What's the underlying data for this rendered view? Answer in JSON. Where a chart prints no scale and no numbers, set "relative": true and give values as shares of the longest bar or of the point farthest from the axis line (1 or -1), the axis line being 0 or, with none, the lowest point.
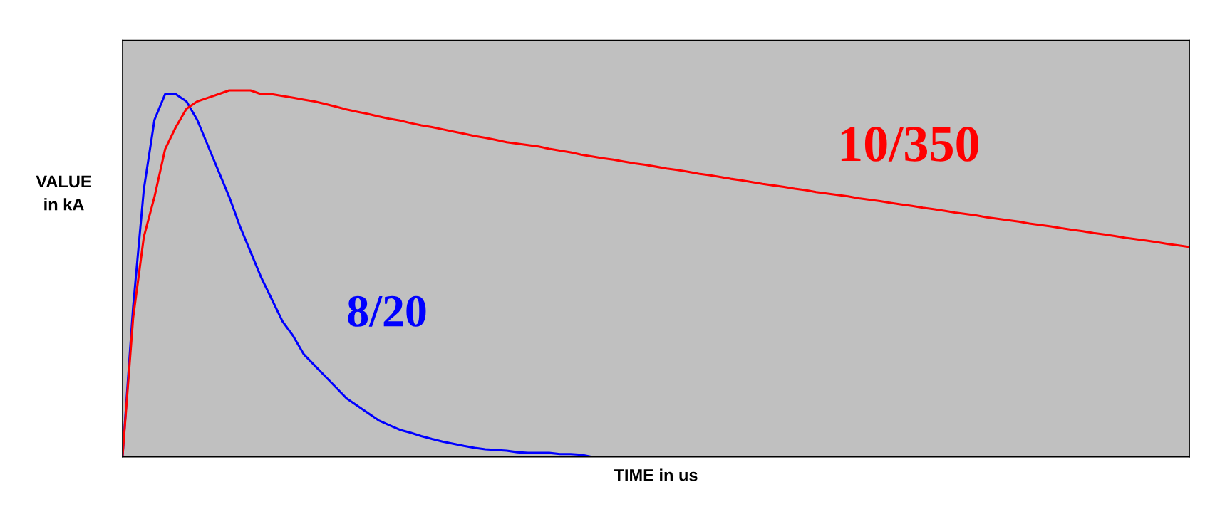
{
  "chart_data": {
    "type": "line",
    "relative": true,
    "xlabel": "TIME in us",
    "ylabel": "VALUE\nin kA",
    "legend": false,
    "marker": "none",
    "line_style": "solid",
    "categories": [
      null,
      null,
      null,
      null,
      null,
      null,
      null,
      null,
      null,
      null,
      null,
      null,
      null,
      null,
      null,
      null,
      null,
      null,
      null,
      null,
      null,
      null,
      null,
      null,
      null,
      null,
      null,
      null,
      null,
      null,
      null,
      null,
      null,
      null,
      null,
      null,
      null,
      null,
      null,
      null,
      null,
      null,
      null,
      null,
      null,
      null,
      null,
      null,
      null,
      null,
      null,
      null,
      null,
      null,
      null,
      null,
      null,
      null,
      null,
      null,
      null,
      null,
      null,
      null,
      null,
      null,
      null,
      null,
      null,
      null,
      null,
      null,
      null,
      null,
      null,
      null,
      null,
      null,
      null,
      null,
      null,
      null,
      null,
      null,
      null,
      null,
      null,
      null,
      null,
      null,
      null,
      null,
      null,
      null,
      null,
      null,
      null,
      null,
      null,
      null,
      null
    ],
    "series": [
      {
        "name": "8/20",
        "color": "#0000ff",
        "values": [
          0,
          0.41,
          0.73,
          0.92,
          0.99,
          0.99,
          0.97,
          0.92,
          0.85,
          0.78,
          0.71,
          0.63,
          0.56,
          0.49,
          0.43,
          0.37,
          0.33,
          0.28,
          0.25,
          0.22,
          0.19,
          0.16,
          0.14,
          0.12,
          0.1,
          0.087,
          0.074,
          0.066,
          0.057,
          0.049,
          0.042,
          0.036,
          0.03,
          0.025,
          0.021,
          0.019,
          0.017,
          0.013,
          0.011,
          0.011,
          0.011,
          0.008,
          0.008,
          0.006,
          0,
          0,
          0,
          0,
          0,
          0,
          0,
          0,
          0,
          0,
          0,
          0,
          0,
          0,
          0,
          0,
          0,
          0,
          0,
          0,
          0,
          0,
          0,
          0,
          0,
          0,
          0,
          0,
          0,
          0,
          0,
          0,
          0,
          0,
          0,
          0,
          0,
          0,
          0,
          0,
          0,
          0,
          0,
          0,
          0,
          0,
          0,
          0,
          0,
          0,
          0,
          0,
          0,
          0,
          0,
          0,
          0
        ]
      },
      {
        "name": "10/350",
        "color": "#ff0000",
        "values": [
          0,
          0.38,
          0.6,
          0.71,
          0.84,
          0.9,
          0.95,
          0.97,
          0.98,
          0.99,
          1,
          1,
          1,
          0.99,
          0.99,
          0.985,
          0.98,
          0.975,
          0.97,
          0.963,
          0.956,
          0.948,
          0.942,
          0.936,
          0.929,
          0.923,
          0.918,
          0.911,
          0.905,
          0.9,
          0.894,
          0.888,
          0.882,
          0.876,
          0.871,
          0.865,
          0.859,
          0.855,
          0.851,
          0.847,
          0.841,
          0.836,
          0.831,
          0.825,
          0.82,
          0.815,
          0.811,
          0.806,
          0.801,
          0.797,
          0.792,
          0.787,
          0.783,
          0.778,
          0.773,
          0.769,
          0.764,
          0.759,
          0.755,
          0.75,
          0.745,
          0.741,
          0.737,
          0.732,
          0.728,
          0.723,
          0.719,
          0.715,
          0.711,
          0.706,
          0.702,
          0.698,
          0.693,
          0.689,
          0.685,
          0.68,
          0.676,
          0.672,
          0.667,
          0.663,
          0.659,
          0.654,
          0.65,
          0.646,
          0.642,
          0.637,
          0.633,
          0.629,
          0.624,
          0.62,
          0.616,
          0.611,
          0.607,
          0.603,
          0.598,
          0.594,
          0.59,
          0.586,
          0.581,
          0.577,
          0.573
        ]
      }
    ]
  }
}
